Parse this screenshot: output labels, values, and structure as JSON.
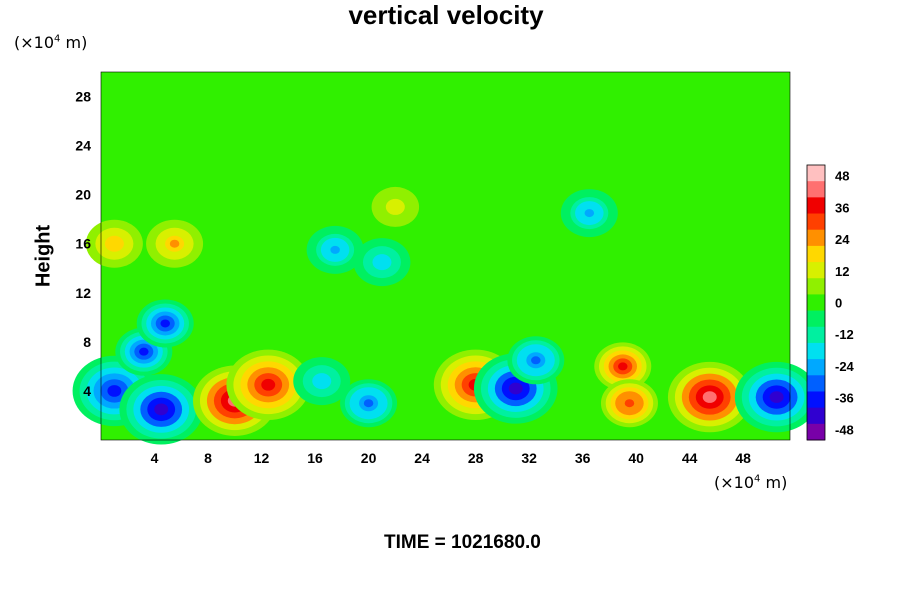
{
  "chart_data": {
    "type": "heatmap",
    "title": "vertical velocity",
    "ylabel": "Height",
    "xunit_prefix": "(×10",
    "xunit_exp": "4",
    "xunit_suffix": " m)",
    "yunit_prefix": "(×10",
    "yunit_exp": "4",
    "yunit_suffix": " m)",
    "footer": "TIME = 1021680.0",
    "xlim": [
      0,
      51.5
    ],
    "ylim": [
      0,
      30
    ],
    "x_ticks": [
      4,
      8,
      12,
      16,
      20,
      24,
      28,
      32,
      36,
      40,
      44,
      48
    ],
    "y_ticks": [
      4,
      8,
      12,
      16,
      20,
      24,
      28
    ],
    "colorbar": {
      "range": [
        -52,
        52
      ],
      "ticks": [
        48,
        36,
        24,
        12,
        0,
        -12,
        -24,
        -36,
        -48
      ],
      "colors": [
        "#7800a8",
        "#3000d0",
        "#0010ff",
        "#0060ff",
        "#00a8ff",
        "#00e0f0",
        "#00f0a0",
        "#00f060",
        "#30f000",
        "#90f000",
        "#d8f000",
        "#ffd800",
        "#ff9000",
        "#ff4000",
        "#f00000",
        "#ff7070",
        "#ffc0c0"
      ]
    },
    "features": [
      {
        "x": 1.0,
        "y": 4.0,
        "value": -45
      },
      {
        "x": 4.5,
        "y": 2.5,
        "value": -48
      },
      {
        "x": 3.2,
        "y": 7.2,
        "value": -40
      },
      {
        "x": 4.8,
        "y": 9.5,
        "value": -40
      },
      {
        "x": 10.0,
        "y": 3.2,
        "value": 50
      },
      {
        "x": 12.5,
        "y": 4.5,
        "value": 44
      },
      {
        "x": 16.5,
        "y": 4.8,
        "value": -22
      },
      {
        "x": 20.0,
        "y": 3.0,
        "value": -36
      },
      {
        "x": 28.0,
        "y": 4.5,
        "value": 42
      },
      {
        "x": 31.0,
        "y": 4.2,
        "value": -48
      },
      {
        "x": 32.5,
        "y": 6.5,
        "value": -36
      },
      {
        "x": 39.0,
        "y": 6.0,
        "value": 40
      },
      {
        "x": 39.5,
        "y": 3.0,
        "value": 38
      },
      {
        "x": 45.5,
        "y": 3.5,
        "value": 52
      },
      {
        "x": 50.5,
        "y": 3.5,
        "value": -48
      },
      {
        "x": 1.0,
        "y": 16.0,
        "value": 24
      },
      {
        "x": 5.5,
        "y": 16.0,
        "value": 26
      },
      {
        "x": 17.5,
        "y": 15.5,
        "value": -28
      },
      {
        "x": 21.0,
        "y": 14.5,
        "value": -24
      },
      {
        "x": 36.5,
        "y": 18.5,
        "value": -28
      },
      {
        "x": 22.0,
        "y": 19.0,
        "value": 14
      }
    ]
  }
}
